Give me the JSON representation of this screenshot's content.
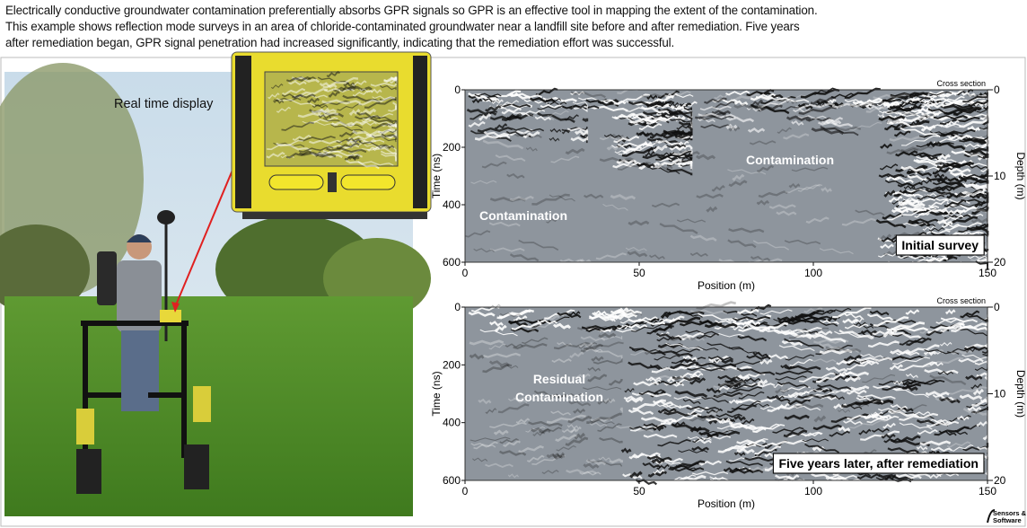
{
  "caption": {
    "lines": [
      "Electrically conductive groundwater contamination preferentially absorbs GPR signals so GPR is an effective tool in mapping the extent of the contamination.",
      "This example  shows reflection mode surveys in an area of chloride-contaminated groundwater near a landfill site before and after remediation. Five years",
      "after remediation began, GPR signal penetration had increased significantly, indicating that the remediation effort was successful."
    ]
  },
  "photo": {
    "label": "Real time display"
  },
  "panels": [
    {
      "corner_label": "Cross section",
      "annotations": [
        "Contamination",
        "Contamination"
      ],
      "label": "Initial survey",
      "x_label": "Position (m)",
      "y_label": "Time (ns)",
      "y2_label": "Depth (m)",
      "xlim": [
        0,
        150
      ],
      "xticks": [
        0,
        50,
        100,
        150
      ],
      "ylim": [
        0,
        600
      ],
      "yticks": [
        0,
        200,
        400,
        600
      ],
      "y2lim": [
        0,
        20
      ],
      "y2ticks": [
        0,
        10,
        20
      ]
    },
    {
      "corner_label": "Cross section",
      "annotations": [
        "Residual",
        "Contamination"
      ],
      "label": "Five years later, after remediation",
      "x_label": "Position (m)",
      "y_label": "Time (ns)",
      "y2_label": "Depth (m)",
      "xlim": [
        0,
        150
      ],
      "xticks": [
        0,
        50,
        100,
        150
      ],
      "ylim": [
        0,
        600
      ],
      "yticks": [
        0,
        200,
        400,
        600
      ],
      "y2lim": [
        0,
        20
      ],
      "y2ticks": [
        0,
        10,
        20
      ]
    }
  ],
  "logo": {
    "lines": [
      "Sensors &",
      "Software"
    ]
  }
}
